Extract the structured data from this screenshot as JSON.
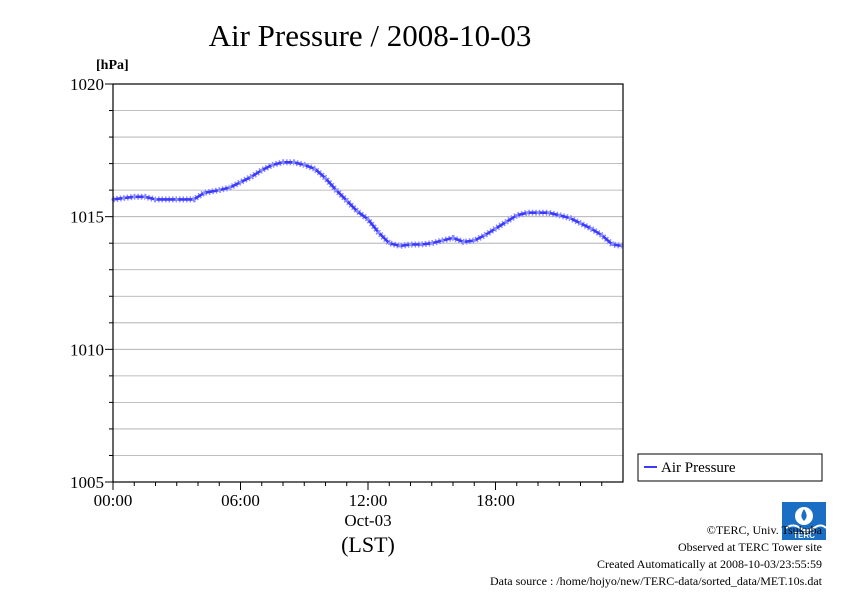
{
  "colors": {
    "series": "#3b3bff",
    "series_dots": "#8d8dff",
    "grid": "#a8a8a8",
    "axis": "#000000",
    "logo": "#1a6fc4"
  },
  "credits": {
    "copyright": "©TERC, Univ. Tsukuba",
    "observed": "Observed at TERC Tower site",
    "created": "Created Automatically at 2008-10-03/23:55:59",
    "source": "Data source : /home/hojyo/new/TERC-data/sorted_data/MET.10s.dat"
  },
  "logo": {
    "icon": "terc-logo-icon",
    "text": "TERC"
  },
  "chart_data": {
    "type": "line",
    "title": "Air Pressure / 2008-10-03",
    "ylabel": "[hPa]",
    "xlabel": "(LST)",
    "date_label": "Oct-03",
    "ylim": [
      1005,
      1020
    ],
    "xlim": [
      0,
      24
    ],
    "y_ticks": [
      1005,
      1010,
      1015,
      1020
    ],
    "x_ticks": [
      {
        "value": 0,
        "label": "00:00"
      },
      {
        "value": 6,
        "label": "06:00"
      },
      {
        "value": 12,
        "label": "12:00"
      },
      {
        "value": 18,
        "label": "18:00"
      }
    ],
    "grid": true,
    "legend_position": "right",
    "series": [
      {
        "name": "Air Pressure",
        "x": [
          0,
          0.5,
          1,
          1.5,
          2,
          3,
          3.8,
          4.3,
          5,
          5.5,
          6,
          6.5,
          7,
          7.5,
          8,
          8.5,
          9,
          9.5,
          10,
          10.5,
          11,
          11.5,
          12,
          12.5,
          13,
          13.5,
          14,
          14.5,
          15,
          15.5,
          16,
          16.5,
          17,
          17.5,
          18,
          18.5,
          19,
          19.5,
          20,
          20.5,
          21,
          21.5,
          22,
          22.5,
          23,
          23.5,
          23.95
        ],
        "y": [
          1015.65,
          1015.7,
          1015.75,
          1015.75,
          1015.65,
          1015.65,
          1015.65,
          1015.9,
          1016.0,
          1016.1,
          1016.3,
          1016.5,
          1016.75,
          1016.95,
          1017.05,
          1017.05,
          1016.95,
          1016.8,
          1016.45,
          1016.0,
          1015.6,
          1015.2,
          1014.9,
          1014.4,
          1014.0,
          1013.9,
          1013.95,
          1013.95,
          1014.0,
          1014.1,
          1014.2,
          1014.05,
          1014.1,
          1014.3,
          1014.55,
          1014.8,
          1015.05,
          1015.15,
          1015.15,
          1015.15,
          1015.05,
          1014.95,
          1014.75,
          1014.55,
          1014.3,
          1013.95,
          1013.9
        ]
      }
    ]
  }
}
